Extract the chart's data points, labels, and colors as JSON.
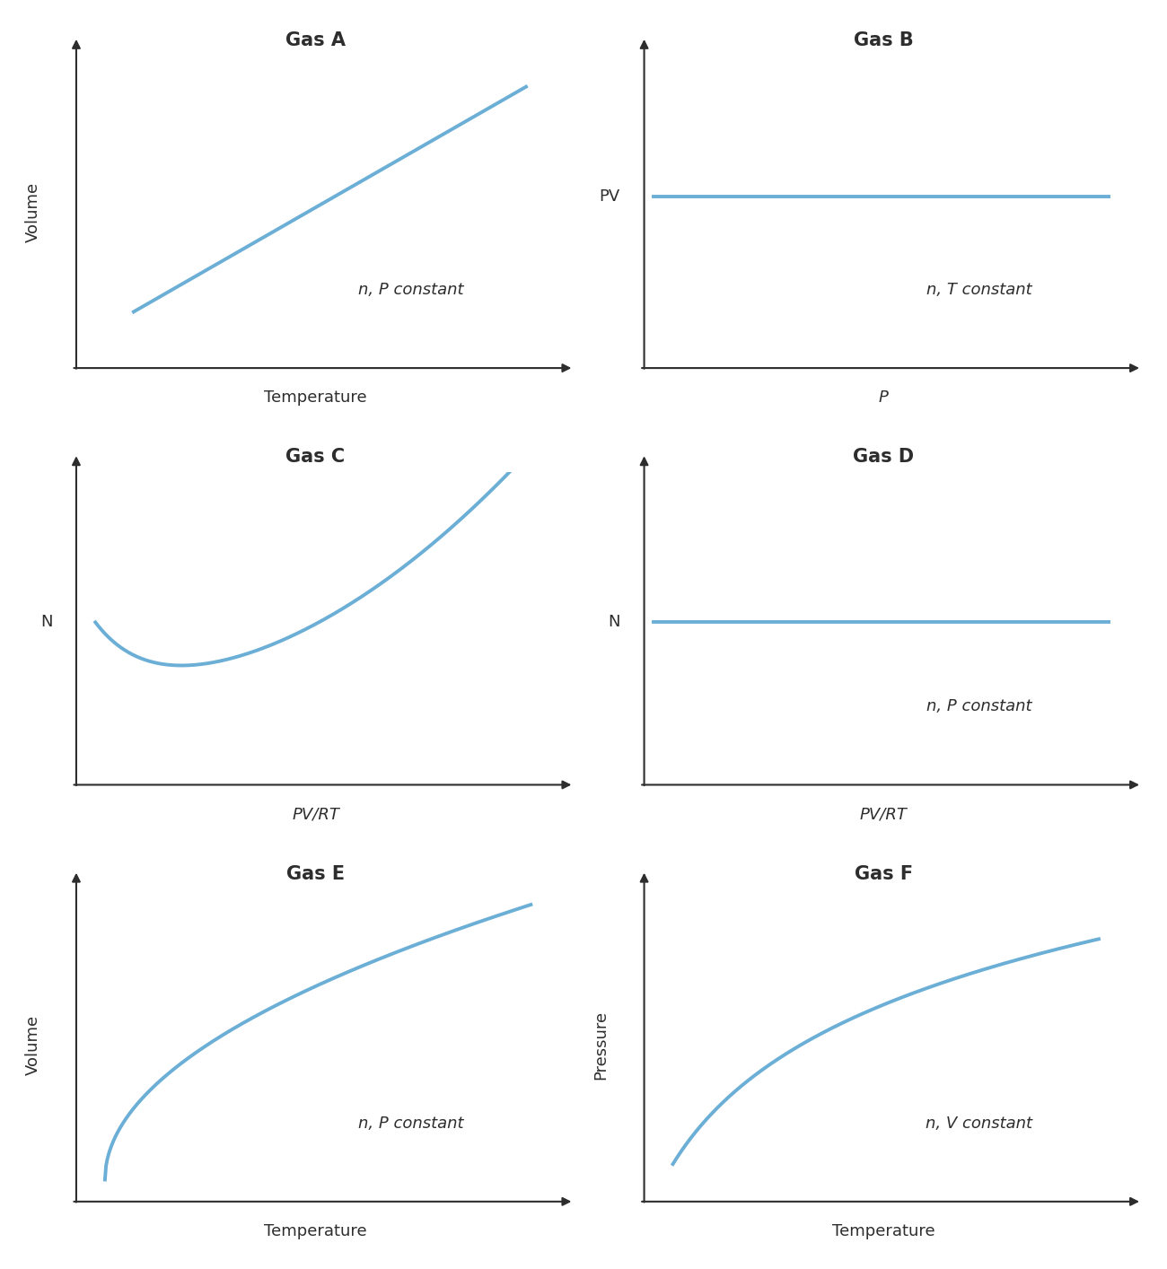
{
  "line_color": "#6baed6",
  "line_width": 2.8,
  "bg_color": "#ffffff",
  "title_fontsize": 15,
  "label_fontsize": 13,
  "annotation_fontsize": 13,
  "axis_color": "#2d2d2d",
  "panels": [
    {
      "title": "Gas A",
      "xlabel": "Temperature",
      "xlabel_italic": false,
      "ylabel": "Volume",
      "ylabel_italic": false,
      "ylabel_as_tick": false,
      "ylabel_tick_y": null,
      "annotation": "n, P constant"
    },
    {
      "title": "Gas B",
      "xlabel": "P",
      "xlabel_italic": true,
      "ylabel": "PV",
      "ylabel_italic": false,
      "ylabel_as_tick": true,
      "ylabel_tick_y": 0.55,
      "annotation": "n, T constant"
    },
    {
      "title": "Gas C",
      "xlabel": "PV/RT",
      "xlabel_italic": true,
      "ylabel": "N",
      "ylabel_italic": false,
      "ylabel_as_tick": true,
      "ylabel_tick_y": 0.52,
      "annotation": ""
    },
    {
      "title": "Gas D",
      "xlabel": "PV/RT",
      "xlabel_italic": true,
      "ylabel": "N",
      "ylabel_italic": false,
      "ylabel_as_tick": true,
      "ylabel_tick_y": 0.52,
      "annotation": "n, P constant"
    },
    {
      "title": "Gas E",
      "xlabel": "Temperature",
      "xlabel_italic": false,
      "ylabel": "Volume",
      "ylabel_italic": false,
      "ylabel_as_tick": false,
      "ylabel_tick_y": null,
      "annotation": "n, P constant"
    },
    {
      "title": "Gas F",
      "xlabel": "Temperature",
      "xlabel_italic": false,
      "ylabel": "Pressure",
      "ylabel_italic": false,
      "ylabel_as_tick": false,
      "ylabel_tick_y": null,
      "annotation": "n, V constant"
    }
  ]
}
